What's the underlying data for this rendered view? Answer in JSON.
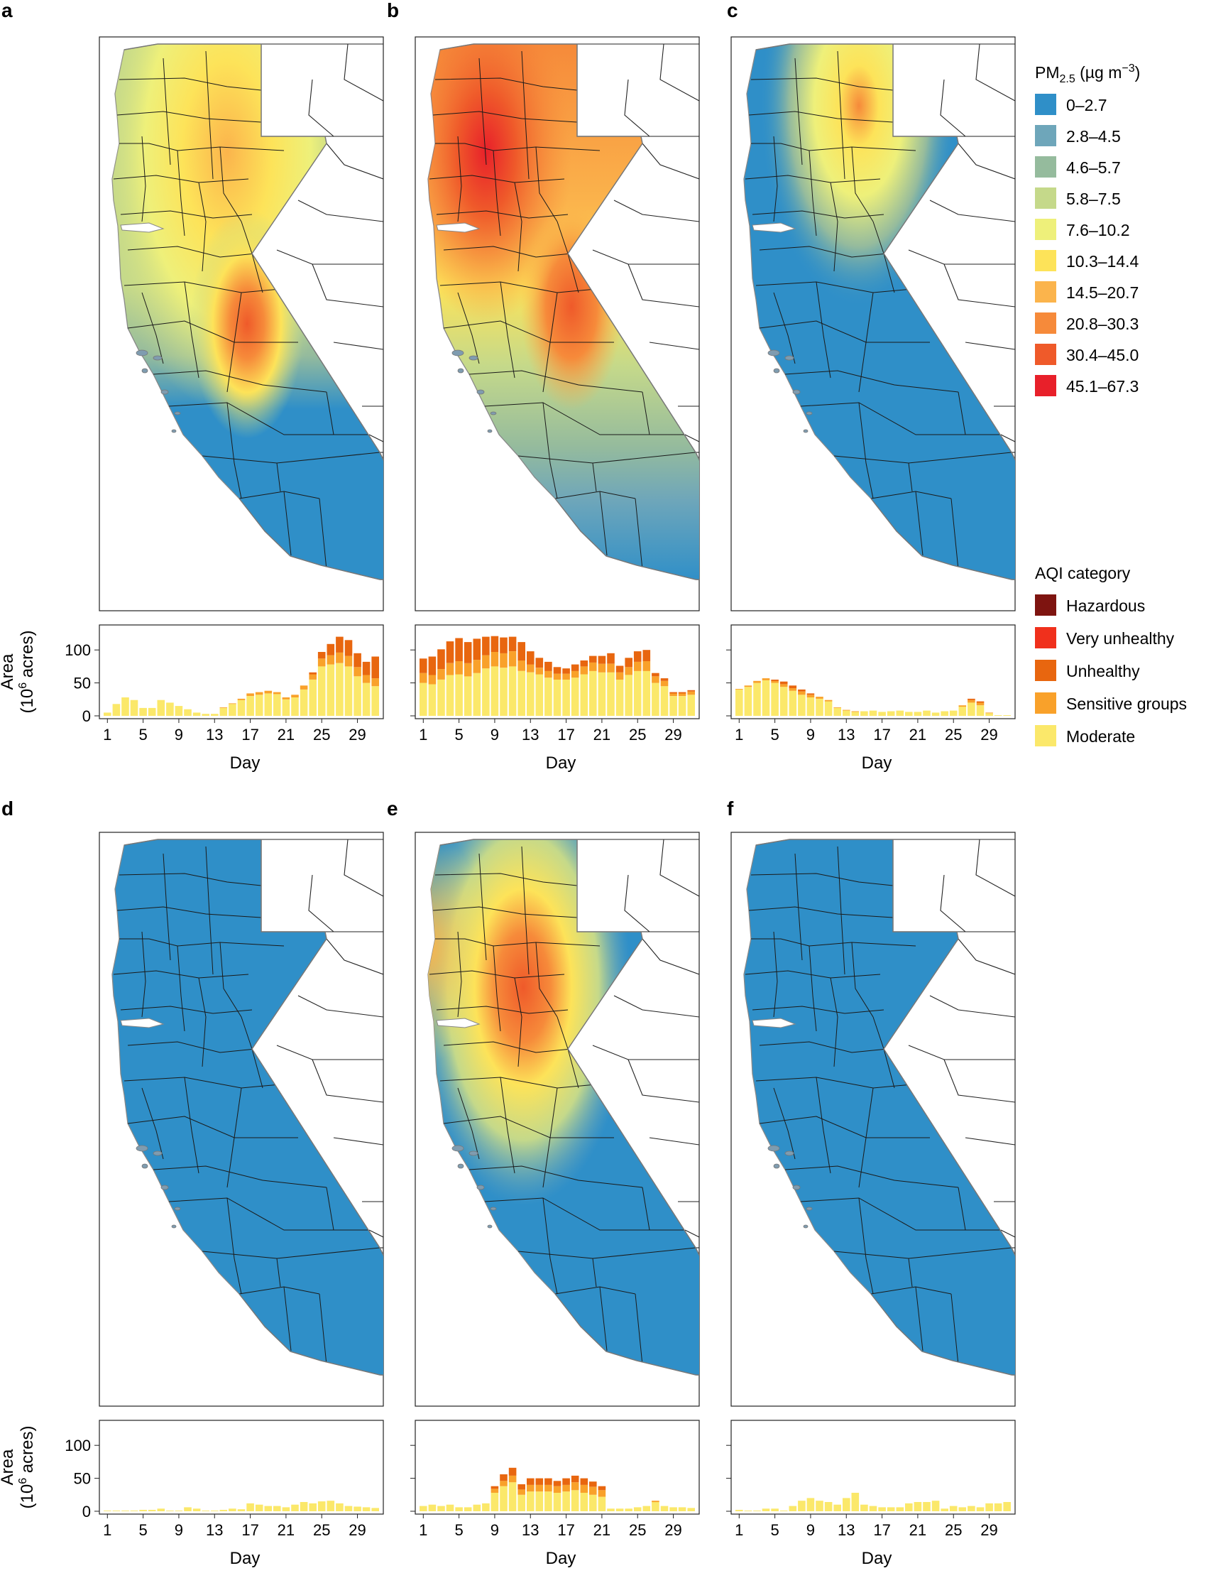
{
  "panel_letters": [
    "a",
    "b",
    "c",
    "d",
    "e",
    "f"
  ],
  "pm_legend": {
    "title_prefix": "PM",
    "title_sub": "2.5",
    "title_suffix": " (µg m",
    "title_sup": "−3",
    "title_close": ")",
    "items": [
      {
        "label": "0–2.7",
        "color": "#2f8fc8"
      },
      {
        "label": "2.8–4.5",
        "color": "#6ea6ba"
      },
      {
        "label": "4.6–5.7",
        "color": "#95bb9d"
      },
      {
        "label": "5.8–7.5",
        "color": "#c5d98a"
      },
      {
        "label": "7.6–10.2",
        "color": "#eef07a"
      },
      {
        "label": "10.3–14.4",
        "color": "#fde359"
      },
      {
        "label": "14.5–20.7",
        "color": "#fbb44c"
      },
      {
        "label": "20.8–30.3",
        "color": "#f68a3a"
      },
      {
        "label": "30.4–45.0",
        "color": "#ef5a2a"
      },
      {
        "label": "45.1–67.3",
        "color": "#e8202a"
      }
    ]
  },
  "aqi_legend": {
    "title": "AQI category",
    "items": [
      {
        "label": "Hazardous",
        "color": "#7e1410"
      },
      {
        "label": "Very unhealthy",
        "color": "#f0301c"
      },
      {
        "label": "Unhealthy",
        "color": "#e8660f"
      },
      {
        "label": "Sensitive groups",
        "color": "#f9a12a"
      },
      {
        "label": "Moderate",
        "color": "#fbe86a"
      }
    ]
  },
  "axes": {
    "y_label_line1": "Area",
    "y_label_line2_prefix": "(10",
    "y_label_line2_sup": "6",
    "y_label_line2_suffix": " acres)",
    "x_label": "Day",
    "x_ticks": [
      "1",
      "5",
      "9",
      "13",
      "17",
      "21",
      "25",
      "29"
    ],
    "y_ticks": [
      "0",
      "50",
      "100"
    ]
  },
  "chart_data": [
    {
      "panel": "a",
      "type": "bar",
      "stacked": true,
      "x_label": "Day",
      "ylim": [
        0,
        125
      ],
      "series": [
        {
          "name": "Moderate",
          "values": [
            5,
            18,
            28,
            24,
            12,
            12,
            24,
            20,
            15,
            10,
            5,
            3,
            3,
            12,
            18,
            24,
            30,
            32,
            34,
            33,
            25,
            28,
            40,
            55,
            75,
            78,
            80,
            75,
            60,
            50,
            45
          ]
        },
        {
          "name": "Sensitive groups",
          "values": [
            0,
            0,
            0,
            0,
            0,
            0,
            0,
            0,
            0,
            0,
            0,
            0,
            0,
            1,
            1,
            2,
            4,
            4,
            4,
            3,
            3,
            4,
            6,
            8,
            12,
            14,
            16,
            16,
            14,
            12,
            12
          ]
        },
        {
          "name": "Unhealthy",
          "values": [
            0,
            0,
            0,
            0,
            0,
            0,
            0,
            0,
            0,
            0,
            0,
            0,
            0,
            0,
            0,
            0,
            0,
            0,
            0,
            0,
            0,
            0,
            0,
            3,
            10,
            17,
            24,
            24,
            21,
            20,
            33
          ]
        }
      ]
    },
    {
      "panel": "b",
      "type": "bar",
      "stacked": true,
      "x_label": "Day",
      "ylim": [
        0,
        125
      ],
      "series": [
        {
          "name": "Moderate",
          "values": [
            50,
            48,
            55,
            62,
            63,
            60,
            65,
            72,
            75,
            73,
            75,
            68,
            66,
            63,
            58,
            55,
            55,
            58,
            63,
            68,
            66,
            66,
            55,
            62,
            68,
            68,
            50,
            45,
            30,
            30,
            32
          ]
        },
        {
          "name": "Sensitive groups",
          "values": [
            15,
            14,
            16,
            18,
            20,
            20,
            20,
            20,
            22,
            22,
            23,
            16,
            12,
            10,
            10,
            9,
            9,
            10,
            12,
            13,
            13,
            13,
            11,
            12,
            14,
            15,
            10,
            8,
            4,
            4,
            5
          ]
        },
        {
          "name": "Unhealthy",
          "values": [
            22,
            28,
            30,
            33,
            35,
            32,
            32,
            28,
            24,
            24,
            22,
            28,
            20,
            15,
            14,
            10,
            8,
            10,
            9,
            10,
            12,
            16,
            10,
            14,
            16,
            17,
            5,
            4,
            2,
            2,
            2
          ]
        }
      ]
    },
    {
      "panel": "c",
      "type": "bar",
      "stacked": true,
      "x_label": "Day",
      "ylim": [
        0,
        125
      ],
      "series": [
        {
          "name": "Moderate",
          "values": [
            40,
            44,
            50,
            54,
            50,
            44,
            38,
            32,
            28,
            26,
            22,
            12,
            8,
            6,
            7,
            8,
            6,
            7,
            8,
            6,
            6,
            8,
            5,
            7,
            8,
            14,
            20,
            16,
            4,
            1,
            1
          ]
        },
        {
          "name": "Sensitive groups",
          "values": [
            1,
            2,
            3,
            3,
            3,
            4,
            4,
            5,
            4,
            3,
            2,
            1,
            1,
            1,
            0,
            0,
            0,
            0,
            0,
            0,
            0,
            0,
            0,
            0,
            0,
            2,
            4,
            4,
            1,
            0,
            0
          ]
        },
        {
          "name": "Unhealthy",
          "values": [
            0,
            0,
            0,
            0,
            2,
            4,
            4,
            3,
            2,
            0,
            0,
            0,
            0,
            0,
            0,
            0,
            0,
            0,
            0,
            0,
            0,
            0,
            0,
            0,
            0,
            0,
            2,
            2,
            0,
            0,
            0
          ]
        }
      ]
    },
    {
      "panel": "d",
      "type": "bar",
      "stacked": true,
      "x_label": "Day",
      "ylim": [
        0,
        125
      ],
      "series": [
        {
          "name": "Moderate",
          "values": [
            1,
            1,
            1,
            1,
            2,
            2,
            4,
            1,
            1,
            6,
            4,
            1,
            1,
            2,
            4,
            3,
            12,
            10,
            8,
            8,
            6,
            10,
            14,
            12,
            15,
            16,
            12,
            8,
            7,
            6,
            5
          ]
        }
      ]
    },
    {
      "panel": "e",
      "type": "bar",
      "stacked": true,
      "x_label": "Day",
      "ylim": [
        0,
        125
      ],
      "series": [
        {
          "name": "Moderate",
          "values": [
            8,
            10,
            8,
            10,
            6,
            6,
            10,
            12,
            28,
            38,
            44,
            25,
            30,
            30,
            30,
            28,
            30,
            32,
            28,
            25,
            22,
            4,
            4,
            4,
            6,
            8,
            14,
            8,
            6,
            6,
            5
          ]
        },
        {
          "name": "Sensitive groups",
          "values": [
            0,
            0,
            0,
            0,
            0,
            0,
            0,
            0,
            6,
            8,
            10,
            8,
            10,
            10,
            10,
            10,
            10,
            12,
            12,
            12,
            10,
            0,
            0,
            0,
            0,
            0,
            2,
            0,
            0,
            0,
            0
          ]
        },
        {
          "name": "Unhealthy",
          "values": [
            0,
            0,
            0,
            0,
            0,
            0,
            0,
            0,
            4,
            10,
            12,
            8,
            10,
            10,
            10,
            8,
            10,
            10,
            10,
            8,
            6,
            0,
            0,
            0,
            0,
            0,
            0,
            0,
            0,
            0,
            0
          ]
        }
      ]
    },
    {
      "panel": "f",
      "type": "bar",
      "stacked": true,
      "x_label": "Day",
      "ylim": [
        0,
        125
      ],
      "series": [
        {
          "name": "Moderate",
          "values": [
            2,
            1,
            1,
            4,
            4,
            1,
            8,
            16,
            20,
            16,
            14,
            10,
            20,
            28,
            10,
            8,
            6,
            6,
            6,
            12,
            14,
            14,
            16,
            4,
            8,
            6,
            8,
            6,
            12,
            12,
            14
          ]
        }
      ]
    }
  ]
}
